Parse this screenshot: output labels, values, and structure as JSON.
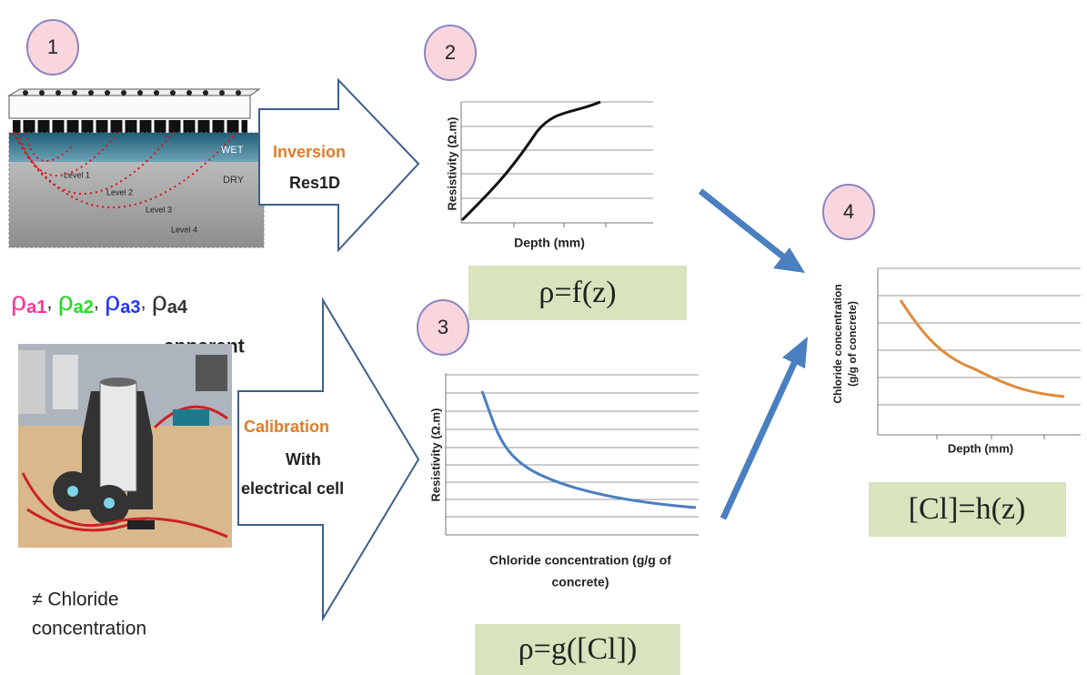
{
  "steps": [
    "1",
    "2",
    "3",
    "4"
  ],
  "sensor": {
    "wet": "WET",
    "dry": "DRY",
    "levels": [
      "Level 1",
      "Level 2",
      "Level 3",
      "Level 4"
    ]
  },
  "apparent_resistivities": {
    "items": [
      {
        "symbol": "ρ",
        "subscript": "a1",
        "color": "#ff3399"
      },
      {
        "symbol": "ρ",
        "subscript": "a2",
        "color": "#22dd22"
      },
      {
        "symbol": "ρ",
        "subscript": "a3",
        "color": "#2233ff"
      },
      {
        "symbol": "ρ",
        "subscript": "a4",
        "color": "#333333"
      }
    ],
    "separator": ", ",
    "caption": "apparent"
  },
  "inversion": {
    "title": "Inversion",
    "tool": "Res1D"
  },
  "calibration": {
    "title": "Calibration",
    "lines": [
      "With",
      "electrical cell"
    ]
  },
  "chart_resistivity_depth": {
    "y_label": "Resistivity (Ω.m)",
    "x_label": "Depth (mm)",
    "formula": "ρ=f(z)"
  },
  "chart_resistivity_chloride": {
    "y_label": "Resistivity (Ω.m)",
    "x_label_lines": [
      "Chloride concentration (g/g of",
      "concrete)"
    ],
    "formula": "ρ=g([Cl])"
  },
  "chart_chloride_depth": {
    "y_label_lines": [
      "Chloride concentration",
      "(g/g of concrete)"
    ],
    "x_label": "Depth (mm)",
    "formula": "[Cl]=h(z)"
  },
  "note_lines": [
    "≠ Chloride",
    "concentration"
  ]
}
